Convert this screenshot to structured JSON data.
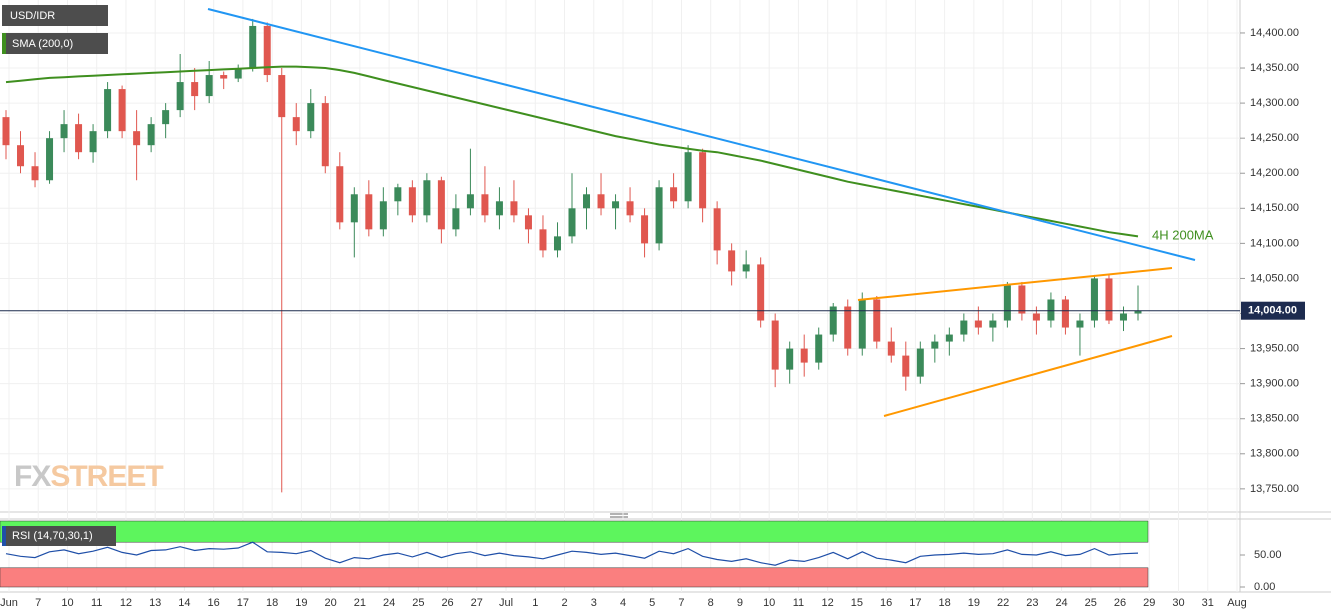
{
  "chart_data": {
    "type": "candlestick",
    "title": "USD/IDR",
    "ylim": [
      13717,
      14447
    ],
    "yticks": [
      {
        "value": 14400,
        "label": "14,400.00"
      },
      {
        "value": 14350,
        "label": "14,350.00"
      },
      {
        "value": 14300,
        "label": "14,300.00"
      },
      {
        "value": 14250,
        "label": "14,250.00"
      },
      {
        "value": 14200,
        "label": "14,200.00"
      },
      {
        "value": 14150,
        "label": "14,150.00"
      },
      {
        "value": 14100,
        "label": "14,100.00"
      },
      {
        "value": 14050,
        "label": "14,050.00"
      },
      {
        "value": 14000,
        "label": "14,000.00"
      },
      {
        "value": 13950,
        "label": "13,950.00"
      },
      {
        "value": 13900,
        "label": "13,900.00"
      },
      {
        "value": 13850,
        "label": "13,850.00"
      },
      {
        "value": 13800,
        "label": "13,800.00"
      },
      {
        "value": 13750,
        "label": "13,750.00"
      }
    ],
    "x_labels": [
      "Jun",
      "7",
      "10",
      "11",
      "12",
      "13",
      "14",
      "16",
      "17",
      "18",
      "19",
      "20",
      "21",
      "24",
      "25",
      "26",
      "27",
      "Jul",
      "1",
      "2",
      "3",
      "4",
      "5",
      "7",
      "8",
      "9",
      "10",
      "11",
      "12",
      "15",
      "16",
      "17",
      "18",
      "19",
      "22",
      "23",
      "24",
      "25",
      "26",
      "29",
      "30",
      "31",
      "Aug"
    ],
    "up_color": "#3b8a5a",
    "down_color": "#e0574f",
    "candles": [
      [
        14280,
        14290,
        14220,
        14240
      ],
      [
        14240,
        14260,
        14200,
        14210
      ],
      [
        14210,
        14230,
        14180,
        14190
      ],
      [
        14190,
        14260,
        14185,
        14250
      ],
      [
        14250,
        14290,
        14230,
        14270
      ],
      [
        14270,
        14285,
        14220,
        14230
      ],
      [
        14230,
        14270,
        14215,
        14260
      ],
      [
        14260,
        14330,
        14250,
        14320
      ],
      [
        14320,
        14325,
        14250,
        14260
      ],
      [
        14260,
        14290,
        14190,
        14240
      ],
      [
        14240,
        14280,
        14230,
        14270
      ],
      [
        14270,
        14300,
        14250,
        14290
      ],
      [
        14290,
        14370,
        14280,
        14330
      ],
      [
        14330,
        14350,
        14290,
        14310
      ],
      [
        14310,
        14360,
        14300,
        14340
      ],
      [
        14340,
        14345,
        14320,
        14335
      ],
      [
        14335,
        14355,
        14330,
        14350
      ],
      [
        14350,
        14420,
        14345,
        14410
      ],
      [
        14410,
        14415,
        14330,
        14340
      ],
      [
        14340,
        14350,
        13745,
        14280
      ],
      [
        14280,
        14300,
        14240,
        14260
      ],
      [
        14260,
        14320,
        14250,
        14300
      ],
      [
        14300,
        14310,
        14200,
        14210
      ],
      [
        14210,
        14230,
        14120,
        14130
      ],
      [
        14130,
        14180,
        14080,
        14170
      ],
      [
        14170,
        14190,
        14110,
        14120
      ],
      [
        14120,
        14180,
        14110,
        14160
      ],
      [
        14160,
        14185,
        14140,
        14180
      ],
      [
        14180,
        14190,
        14130,
        14140
      ],
      [
        14140,
        14200,
        14130,
        14190
      ],
      [
        14190,
        14195,
        14100,
        14120
      ],
      [
        14120,
        14170,
        14110,
        14150
      ],
      [
        14150,
        14235,
        14140,
        14170
      ],
      [
        14170,
        14210,
        14130,
        14140
      ],
      [
        14140,
        14180,
        14120,
        14160
      ],
      [
        14160,
        14190,
        14130,
        14140
      ],
      [
        14140,
        14150,
        14100,
        14120
      ],
      [
        14120,
        14140,
        14080,
        14090
      ],
      [
        14090,
        14130,
        14080,
        14110
      ],
      [
        14110,
        14200,
        14100,
        14150
      ],
      [
        14150,
        14180,
        14120,
        14170
      ],
      [
        14170,
        14200,
        14140,
        14150
      ],
      [
        14150,
        14170,
        14120,
        14160
      ],
      [
        14160,
        14180,
        14130,
        14140
      ],
      [
        14140,
        14150,
        14080,
        14100
      ],
      [
        14100,
        14190,
        14090,
        14180
      ],
      [
        14180,
        14200,
        14150,
        14160
      ],
      [
        14160,
        14240,
        14150,
        14230
      ],
      [
        14230,
        14235,
        14130,
        14150
      ],
      [
        14150,
        14160,
        14070,
        14090
      ],
      [
        14090,
        14100,
        14040,
        14060
      ],
      [
        14060,
        14090,
        14050,
        14070
      ],
      [
        14070,
        14080,
        13980,
        13990
      ],
      [
        13990,
        14000,
        13895,
        13920
      ],
      [
        13920,
        13960,
        13900,
        13950
      ],
      [
        13950,
        13970,
        13910,
        13930
      ],
      [
        13930,
        13980,
        13920,
        13970
      ],
      [
        13970,
        14015,
        13960,
        14010
      ],
      [
        14010,
        14020,
        13940,
        13950
      ],
      [
        13950,
        14030,
        13940,
        14020
      ],
      [
        14020,
        14025,
        13950,
        13960
      ],
      [
        13960,
        13980,
        13930,
        13940
      ],
      [
        13940,
        13960,
        13890,
        13910
      ],
      [
        13910,
        13960,
        13900,
        13950
      ],
      [
        13950,
        13970,
        13930,
        13960
      ],
      [
        13960,
        13980,
        13940,
        13970
      ],
      [
        13970,
        14000,
        13960,
        13990
      ],
      [
        13990,
        14010,
        13970,
        13980
      ],
      [
        13980,
        14000,
        13960,
        13990
      ],
      [
        13990,
        14045,
        13980,
        14040
      ],
      [
        14040,
        14045,
        13990,
        14000
      ],
      [
        14000,
        14010,
        13970,
        13990
      ],
      [
        13990,
        14030,
        13980,
        14020
      ],
      [
        14020,
        14025,
        13970,
        13980
      ],
      [
        13980,
        14000,
        13940,
        13990
      ],
      [
        13990,
        14055,
        13980,
        14050
      ],
      [
        14050,
        14055,
        13985,
        13990
      ],
      [
        13990,
        14010,
        13975,
        14000
      ],
      [
        14000,
        14040,
        13990,
        14004
      ]
    ],
    "sma": {
      "name": "SMA (200,0)",
      "color": "#3f8f1f",
      "values": [
        14330,
        14332,
        14334,
        14336,
        14337,
        14338,
        14339,
        14340,
        14341,
        14342,
        14343,
        14344,
        14345,
        14346,
        14347,
        14348,
        14349,
        14350,
        14351,
        14352,
        14352,
        14351,
        14350,
        14347,
        14343,
        14338,
        14333,
        14328,
        14323,
        14318,
        14313,
        14308,
        14303,
        14298,
        14293,
        14288,
        14283,
        14278,
        14273,
        14268,
        14263,
        14258,
        14253,
        14249,
        14245,
        14241,
        14238,
        14235,
        14232,
        14230,
        14226,
        14222,
        14218,
        14213,
        14208,
        14203,
        14198,
        14193,
        14188,
        14184,
        14180,
        14176,
        14172,
        14168,
        14164,
        14160,
        14156,
        14152,
        14148,
        14144,
        14140,
        14136,
        14132,
        14128,
        14124,
        14120,
        14116,
        14113,
        14110
      ]
    },
    "annotation": "4H 200MA",
    "last_price": {
      "value": 14004,
      "label": "14,004.00"
    },
    "watermark": {
      "fx": "FX",
      "street": "STREET"
    },
    "rsi": {
      "name": "RSI (14,70,30,1)",
      "color": "#1f4fa8",
      "ylim": [
        0,
        100
      ],
      "yticks": [
        {
          "value": 50,
          "label": "50.00"
        },
        {
          "value": 0,
          "label": "0.00"
        }
      ],
      "overbought": 70,
      "oversold": 30,
      "values": [
        52,
        48,
        46,
        55,
        58,
        52,
        56,
        62,
        54,
        50,
        57,
        58,
        63,
        57,
        60,
        59,
        61,
        70,
        55,
        54,
        52,
        57,
        45,
        38,
        46,
        44,
        50,
        53,
        47,
        54,
        46,
        52,
        55,
        49,
        53,
        49,
        47,
        44,
        50,
        56,
        54,
        51,
        53,
        49,
        45,
        56,
        52,
        60,
        48,
        43,
        40,
        44,
        38,
        34,
        42,
        40,
        46,
        54,
        44,
        55,
        45,
        42,
        38,
        48,
        50,
        51,
        53,
        51,
        52,
        58,
        51,
        50,
        55,
        49,
        51,
        60,
        50,
        52,
        53
      ]
    }
  }
}
